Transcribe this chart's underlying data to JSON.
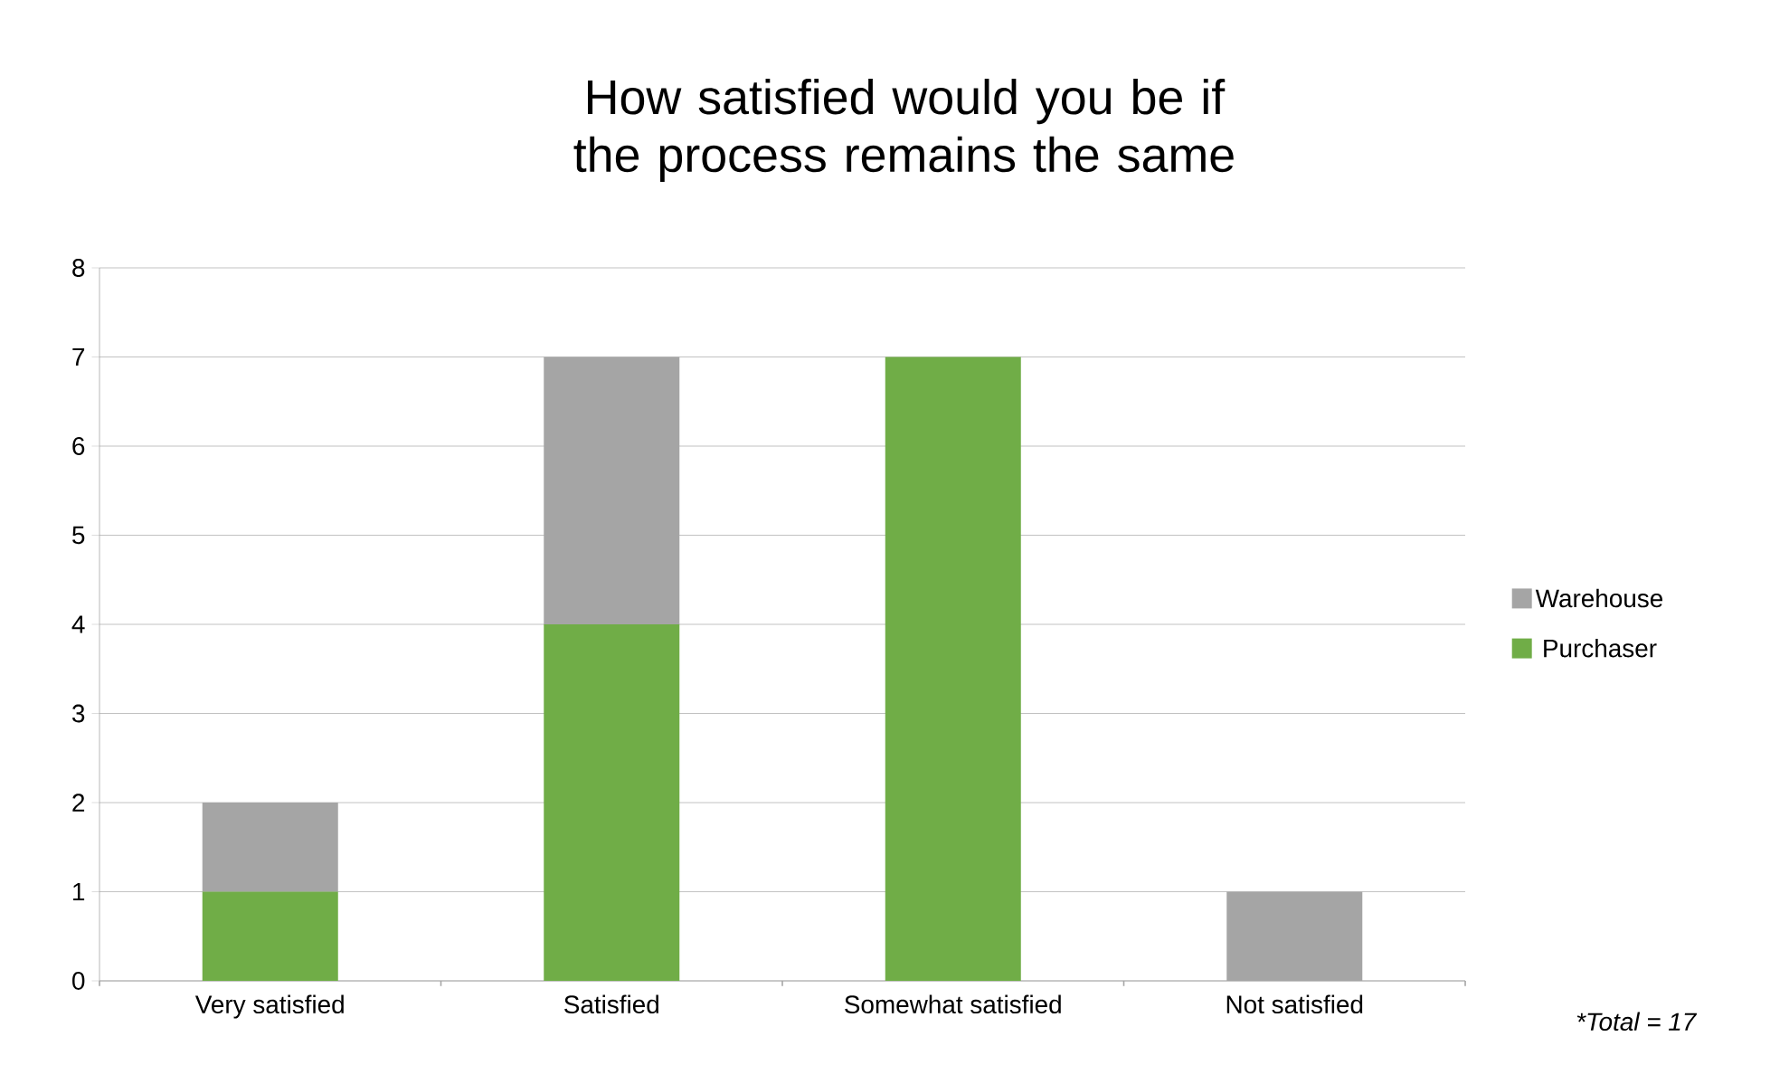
{
  "chart_data": {
    "type": "bar",
    "stacked": true,
    "title": "How satisfied would you be if the process remains the same",
    "categories": [
      "Very satisfied",
      "Satisfied",
      "Somewhat satisfied",
      "Not satisfied"
    ],
    "series": [
      {
        "name": "Purchaser",
        "color": "#70ad47",
        "values": [
          1,
          4,
          7,
          0
        ]
      },
      {
        "name": "Warehouse",
        "color": "#a5a5a5",
        "values": [
          1,
          3,
          0,
          1
        ]
      }
    ],
    "ylim": [
      0,
      8
    ],
    "yticks": [
      0,
      1,
      2,
      3,
      4,
      5,
      6,
      7,
      8
    ],
    "grid": "y",
    "legend": "right",
    "annotations": [
      "*Total = 17"
    ]
  }
}
